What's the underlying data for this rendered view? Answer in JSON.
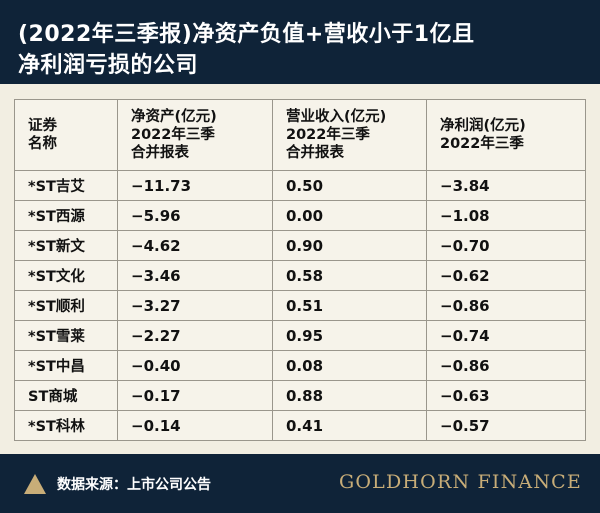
{
  "header": {
    "title_line1": "(2022年三季报)净资产负值+营收小于1亿且",
    "title_line2": "净利润亏损的公司"
  },
  "table": {
    "columns": [
      [
        "证券",
        "名称"
      ],
      [
        "净资产(亿元)",
        "2022年三季",
        "合并报表"
      ],
      [
        "营业收入(亿元)",
        "2022年三季",
        "合并报表"
      ],
      [
        "净利润(亿元)",
        "2022年三季"
      ]
    ],
    "rows": [
      [
        "*ST吉艾",
        "−11.73",
        "0.50",
        "−3.84"
      ],
      [
        "*ST西源",
        "−5.96",
        "0.00",
        "−1.08"
      ],
      [
        "*ST新文",
        "−4.62",
        "0.90",
        "−0.70"
      ],
      [
        "*ST文化",
        "−3.46",
        "0.58",
        "−0.62"
      ],
      [
        "*ST顺利",
        "−3.27",
        "0.51",
        "−0.86"
      ],
      [
        "*ST雪莱",
        "−2.27",
        "0.95",
        "−0.74"
      ],
      [
        "*ST中昌",
        "−0.40",
        "0.08",
        "−0.86"
      ],
      [
        "ST商城",
        "−0.17",
        "0.88",
        "−0.63"
      ],
      [
        "*ST科林",
        "−0.14",
        "0.41",
        "−0.57"
      ]
    ]
  },
  "footer": {
    "source": "数据来源：上市公司公告",
    "brand": "GOLDHORN FINANCE",
    "icon": "triangle-icon"
  },
  "colors": {
    "navy": "#0f2338",
    "panel": "#f2eee2",
    "gold": "#c8ad78",
    "border": "#9a968c"
  }
}
